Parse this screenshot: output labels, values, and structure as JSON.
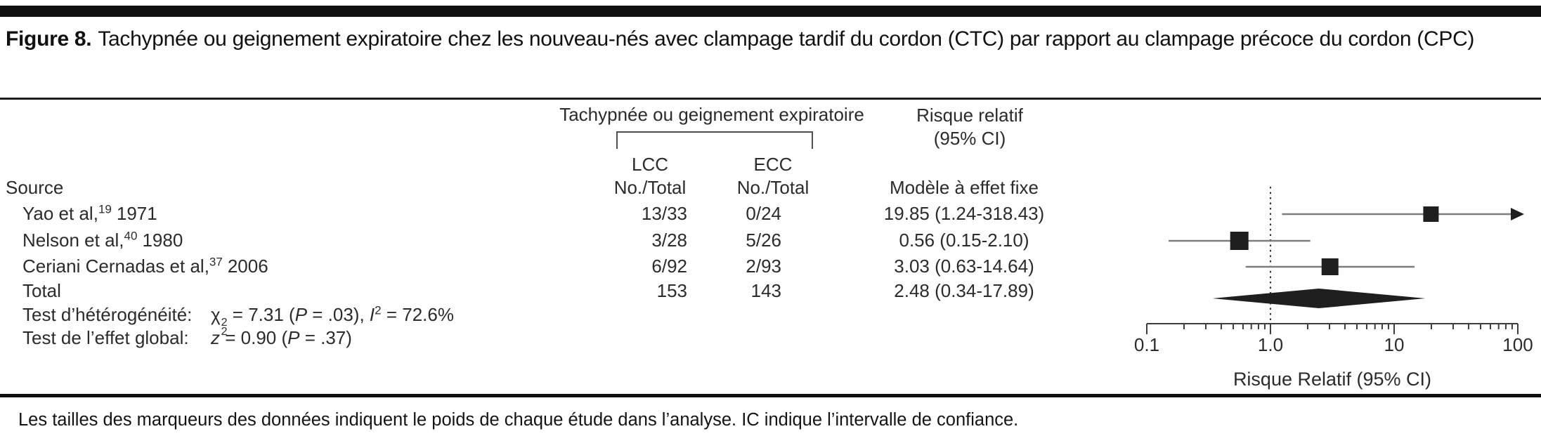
{
  "figure": {
    "label": "Figure 8.",
    "title": "Tachypnée ou geignement expiratoire chez les nouveau-nés avec clampage tardif du cordon (CTC) par rapport au clampage précoce du cordon (CPC)"
  },
  "table": {
    "source_header": "Source",
    "group_header": "Tachypnée ou geignement expiratoire",
    "rr_header_line1": "Risque relatif",
    "rr_header_line2": "(95% CI)",
    "lcc_header": "LCC",
    "ecc_header": "ECC",
    "lcc_subheader": "No./Total",
    "ecc_subheader": "No./Total",
    "model_header": "Modèle à effet fixe",
    "rows": [
      {
        "source": "Yao et al,",
        "ref": "19",
        "year": "1971",
        "lcc": "13/33",
        "ecc": "0/24",
        "rr": "19.85 (1.24-318.43)"
      },
      {
        "source": "Nelson et al,",
        "ref": "40",
        "year": "1980",
        "lcc": "3/28",
        "ecc": "5/26",
        "rr": "0.56 (0.15-2.10)"
      },
      {
        "source": "Ceriani Cernadas et al,",
        "ref": "37",
        "year": "2006",
        "lcc": "6/92",
        "ecc": "2/93",
        "rr": "3.03 (0.63-14.64)"
      }
    ],
    "total": {
      "label": "Total",
      "lcc": "153",
      "ecc": "143",
      "rr": "2.48 (0.34-17.89)"
    }
  },
  "tests": {
    "het": {
      "label": "Test d’hétérogénéité:",
      "chi": "χ",
      "chi_sup": "2",
      "chi_sub": "2",
      "mid": " = 7.31 (",
      "p": "P",
      "after_p": " = .03), ",
      "i": "I",
      "i_sup": "2",
      "after_i": " = 72.6%"
    },
    "global": {
      "label": "Test de l’effet global:",
      "z": "z",
      "mid": " = 0.90 (",
      "p": "P",
      "after_p": " = .37)"
    }
  },
  "footnote": "Les tailles des marqueurs des données indiquent le poids de chaque étude dans l’analyse. IC indique l’intervalle de confiance.",
  "colors": {
    "marker": "#1f1f1f",
    "ci_line": "#7d7d7d",
    "axis": "#3c3c3c",
    "dotted": "#2e2e2e",
    "text": "#141414"
  },
  "chart_data": {
    "type": "scatter",
    "subtype": "forest-plot",
    "x_scale": "log",
    "x_range": [
      0.1,
      100
    ],
    "x_ticks": [
      0.1,
      1.0,
      10,
      100
    ],
    "x_tick_labels": [
      "0.1",
      "1.0",
      "10",
      "100"
    ],
    "xlabel": "Risque Relatif (95% CI)",
    "null_line": 1.0,
    "model": "fixed-effect",
    "studies": [
      {
        "name": "Yao et al, 1971",
        "rr": 19.85,
        "ci": [
          1.24,
          318.43
        ],
        "events_lcc": "13/33",
        "events_ecc": "0/24",
        "marker_size_px": 22,
        "ci_clipped_right": true
      },
      {
        "name": "Nelson et al, 1980",
        "rr": 0.56,
        "ci": [
          0.15,
          2.1
        ],
        "events_lcc": "3/28",
        "events_ecc": "5/26",
        "marker_size_px": 26,
        "ci_clipped_right": false
      },
      {
        "name": "Ceriani Cernadas et al, 2006",
        "rr": 3.03,
        "ci": [
          0.63,
          14.64
        ],
        "events_lcc": "6/92",
        "events_ecc": "2/93",
        "marker_size_px": 24,
        "ci_clipped_right": false
      }
    ],
    "total": {
      "rr": 2.48,
      "ci": [
        0.34,
        17.89
      ],
      "n_lcc": 153,
      "n_ecc": 143
    },
    "heterogeneity": {
      "chi2_df2": 7.31,
      "p": 0.03,
      "i2_percent": 72.6
    },
    "overall_effect": {
      "z": 0.9,
      "p": 0.37
    }
  }
}
